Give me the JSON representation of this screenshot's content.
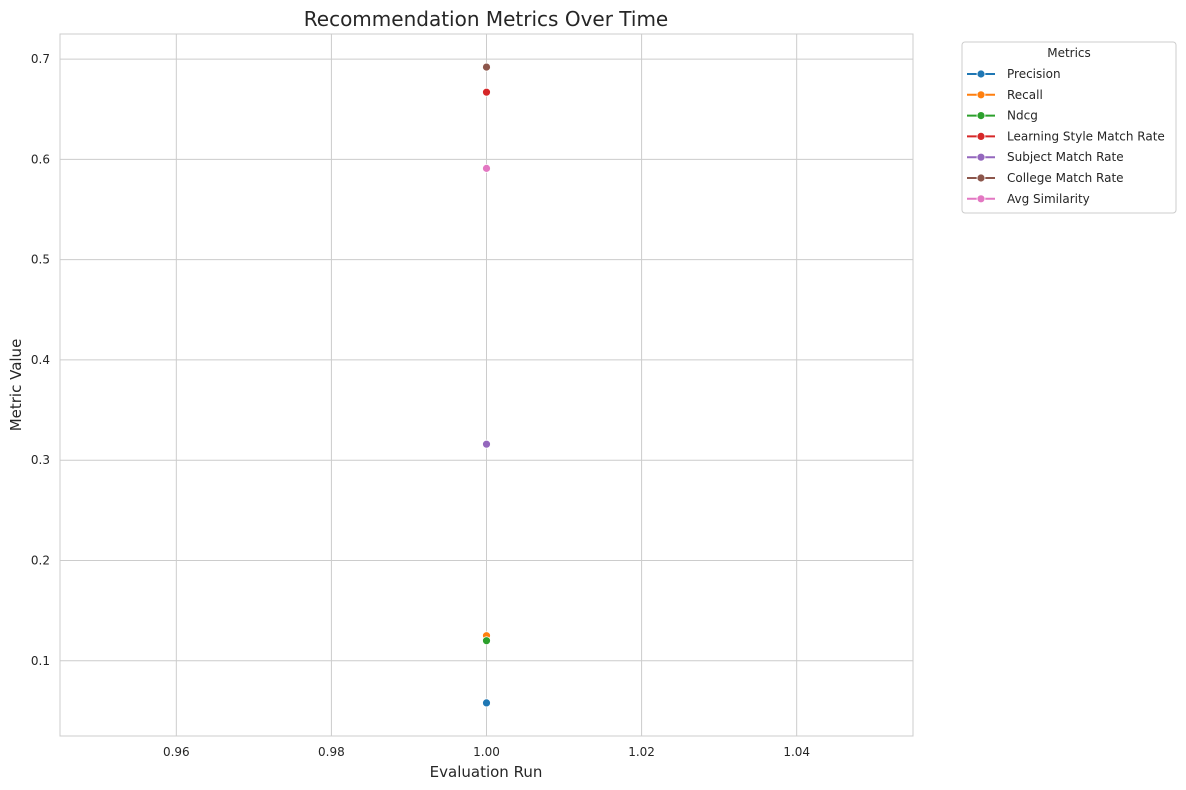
{
  "chart_data": {
    "type": "line",
    "title": "Recommendation Metrics Over Time",
    "xlabel": "Evaluation Run",
    "ylabel": "Metric Value",
    "xlim": [
      0.945,
      1.055
    ],
    "ylim": [
      0.025,
      0.725
    ],
    "xticks": [
      0.96,
      0.98,
      1.0,
      1.02,
      1.04
    ],
    "xtick_labels": [
      "0.96",
      "0.98",
      "1.00",
      "1.02",
      "1.04"
    ],
    "yticks": [
      0.1,
      0.2,
      0.3,
      0.4,
      0.5,
      0.6,
      0.7
    ],
    "ytick_labels": [
      "0.1",
      "0.2",
      "0.3",
      "0.4",
      "0.5",
      "0.6",
      "0.7"
    ],
    "grid": true,
    "legend": {
      "title": "Metrics",
      "placement": "outside-top-right"
    },
    "series": [
      {
        "name": "Precision",
        "color": "#1f77b4",
        "x": [
          1.0
        ],
        "y": [
          0.058
        ]
      },
      {
        "name": "Recall",
        "color": "#ff7f0e",
        "x": [
          1.0
        ],
        "y": [
          0.125
        ]
      },
      {
        "name": "Ndcg",
        "color": "#2ca02c",
        "x": [
          1.0
        ],
        "y": [
          0.12
        ]
      },
      {
        "name": "Learning Style Match Rate",
        "color": "#d62728",
        "x": [
          1.0
        ],
        "y": [
          0.667
        ]
      },
      {
        "name": "Subject Match Rate",
        "color": "#9467bd",
        "x": [
          1.0
        ],
        "y": [
          0.316
        ]
      },
      {
        "name": "College Match Rate",
        "color": "#8c564b",
        "x": [
          1.0
        ],
        "y": [
          0.692
        ]
      },
      {
        "name": "Avg Similarity",
        "color": "#e377c2",
        "x": [
          1.0
        ],
        "y": [
          0.591
        ]
      }
    ]
  }
}
